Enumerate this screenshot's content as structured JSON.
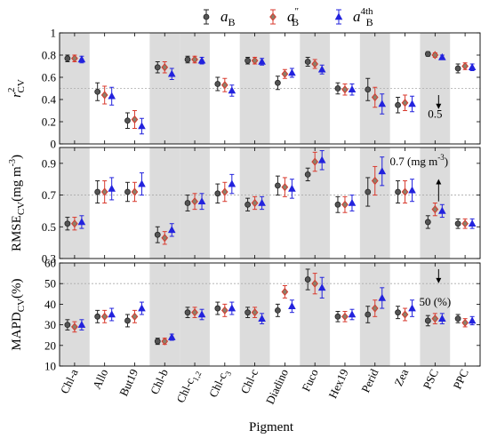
{
  "chart_data": {
    "type": "errorbar",
    "xlabel": "Pigment",
    "categories": [
      "Chl-a",
      "Allo",
      "But19",
      "Chl-b",
      "Chl-c1,2",
      "Chl-c3",
      "Chl-c",
      "Diadino",
      "Fuco",
      "Hex19",
      "Perid",
      "Zea",
      "PSC",
      "PPC"
    ],
    "category_labels": [
      {
        "main": "Chl-a",
        "sub": ""
      },
      {
        "main": "Allo",
        "sub": ""
      },
      {
        "main": "But19",
        "sub": ""
      },
      {
        "main": "Chl-b",
        "sub": ""
      },
      {
        "main": "Chl-c",
        "sub": "1,2"
      },
      {
        "main": "Chl-c",
        "sub": "3"
      },
      {
        "main": "Chl-c",
        "sub": ""
      },
      {
        "main": "Diadino",
        "sub": ""
      },
      {
        "main": "Fuco",
        "sub": ""
      },
      {
        "main": "Hex19",
        "sub": ""
      },
      {
        "main": "Perid",
        "sub": ""
      },
      {
        "main": "Zea",
        "sub": ""
      },
      {
        "main": "PSC",
        "sub": ""
      },
      {
        "main": "PPC",
        "sub": ""
      }
    ],
    "shaded_categories": [
      0,
      3,
      4,
      6,
      8,
      10,
      12
    ],
    "legend": [
      {
        "key": "aB",
        "base": "a",
        "sup": "",
        "sub": "B",
        "color": "#222222",
        "marker": "circle"
      },
      {
        "key": "aB2",
        "base": "a",
        "sup": "″",
        "sub": "B",
        "color": "#d83a2e",
        "marker": "diamond"
      },
      {
        "key": "aB4",
        "base": "a",
        "sup": "4th",
        "sub": "B",
        "color": "#2222dd",
        "marker": "triangle"
      }
    ],
    "panels": [
      {
        "id": "r2",
        "ylabel": {
          "main": "r",
          "sup": "2",
          "sub": "CV"
        },
        "ylim": [
          0,
          1
        ],
        "yticks": [
          0,
          0.2,
          0.4,
          0.6,
          0.8,
          1
        ],
        "ytick_labels": [
          "0",
          "0.2",
          "0.4",
          "0.6",
          "0.8",
          "1"
        ],
        "ref_line": 0.5,
        "annotation": {
          "text": "0.5",
          "category": 12,
          "y": 0.27,
          "arrow_from": 0.44,
          "arrow_to": 0.33
        },
        "series": [
          {
            "key": "aB",
            "mean": [
              0.77,
              0.47,
              0.21,
              0.69,
              0.76,
              0.54,
              0.75,
              0.55,
              0.74,
              0.5,
              0.49,
              0.35,
              0.81,
              0.68
            ],
            "err": [
              0.03,
              0.08,
              0.07,
              0.05,
              0.03,
              0.06,
              0.03,
              0.06,
              0.04,
              0.05,
              0.1,
              0.07,
              0.02,
              0.04
            ]
          },
          {
            "key": "aB2",
            "mean": [
              0.77,
              0.44,
              0.22,
              0.69,
              0.76,
              0.53,
              0.75,
              0.63,
              0.72,
              0.49,
              0.42,
              0.37,
              0.8,
              0.7
            ],
            "err": [
              0.03,
              0.08,
              0.08,
              0.05,
              0.03,
              0.06,
              0.03,
              0.04,
              0.04,
              0.05,
              0.09,
              0.07,
              0.02,
              0.03
            ]
          },
          {
            "key": "aB4",
            "mean": [
              0.76,
              0.43,
              0.16,
              0.63,
              0.75,
              0.48,
              0.74,
              0.64,
              0.67,
              0.49,
              0.36,
              0.36,
              0.78,
              0.69
            ],
            "err": [
              0.03,
              0.08,
              0.07,
              0.05,
              0.03,
              0.05,
              0.03,
              0.04,
              0.04,
              0.05,
              0.09,
              0.07,
              0.02,
              0.03
            ]
          }
        ]
      },
      {
        "id": "rmse",
        "ylabel": {
          "main": "RMSE",
          "sup": "",
          "sub": "CV",
          "unit": "(mg m",
          "unit_sup": "-3",
          "unit_end": ")"
        },
        "ylim": [
          0.3,
          1.0
        ],
        "yticks": [
          0.3,
          0.5,
          0.7,
          0.9
        ],
        "ytick_labels": [
          "0.3",
          "0.5",
          "0.7",
          "0.9"
        ],
        "ref_line": 0.7,
        "annotation": {
          "text": "0.7 (mg m",
          "text_sup": "-3",
          "text_end": ")",
          "category": 12,
          "y": 0.91,
          "arrow_from": 0.66,
          "arrow_to": 0.79
        },
        "series": [
          {
            "key": "aB",
            "mean": [
              0.52,
              0.72,
              0.72,
              0.45,
              0.65,
              0.71,
              0.64,
              0.76,
              0.83,
              0.64,
              0.72,
              0.72,
              0.53,
              0.52
            ],
            "err": [
              0.04,
              0.07,
              0.06,
              0.05,
              0.05,
              0.06,
              0.04,
              0.06,
              0.04,
              0.05,
              0.09,
              0.07,
              0.04,
              0.03
            ]
          },
          {
            "key": "aB2",
            "mean": [
              0.52,
              0.72,
              0.72,
              0.43,
              0.66,
              0.72,
              0.65,
              0.75,
              0.91,
              0.64,
              0.79,
              0.72,
              0.61,
              0.52
            ],
            "err": [
              0.04,
              0.07,
              0.06,
              0.04,
              0.05,
              0.06,
              0.04,
              0.06,
              0.06,
              0.05,
              0.09,
              0.07,
              0.04,
              0.03
            ]
          },
          {
            "key": "aB4",
            "mean": [
              0.53,
              0.74,
              0.77,
              0.48,
              0.66,
              0.77,
              0.65,
              0.74,
              0.92,
              0.65,
              0.85,
              0.73,
              0.6,
              0.52
            ],
            "err": [
              0.04,
              0.07,
              0.07,
              0.04,
              0.05,
              0.06,
              0.04,
              0.06,
              0.06,
              0.05,
              0.09,
              0.07,
              0.04,
              0.03
            ]
          }
        ]
      },
      {
        "id": "mapd",
        "ylabel": {
          "main": "MAPD",
          "sup": "",
          "sub": "CV",
          "unit": "(%)",
          "unit_sup": "",
          "unit_end": ""
        },
        "ylim": [
          10,
          60
        ],
        "yticks": [
          10,
          20,
          30,
          40,
          50,
          60
        ],
        "ytick_labels": [
          "10",
          "20",
          "30",
          "40",
          "50",
          "60"
        ],
        "ref_line": 50,
        "annotation": {
          "text": "50 (%)",
          "category": 12,
          "y": 41,
          "arrow_from": 57,
          "arrow_to": 51
        },
        "series": [
          {
            "key": "aB",
            "mean": [
              30,
              34,
              32,
              22,
              36,
              38,
              36,
              37,
              52,
              34,
              35,
              36,
              32,
              33
            ],
            "err": [
              2.5,
              3,
              3,
              1.5,
              2.5,
              3,
              2.5,
              3,
              5,
              2.5,
              4,
              3,
              2.5,
              2
            ]
          },
          {
            "key": "aB2",
            "mean": [
              29,
              34,
              34,
              22,
              36,
              37,
              36,
              46,
              50,
              34,
              38,
              35,
              33,
              31
            ],
            "err": [
              2.5,
              3,
              3,
              1.5,
              2.5,
              3,
              2.5,
              3,
              5,
              2.5,
              4,
              3,
              2.5,
              2
            ]
          },
          {
            "key": "aB4",
            "mean": [
              30,
              35,
              38,
              24,
              35,
              38,
              33,
              39,
              48,
              35,
              43,
              38,
              33,
              32
            ],
            "err": [
              2.5,
              3,
              3,
              1.5,
              2.5,
              3,
              2.5,
              3,
              5,
              2.5,
              5,
              4,
              2.5,
              2
            ]
          }
        ]
      }
    ]
  }
}
